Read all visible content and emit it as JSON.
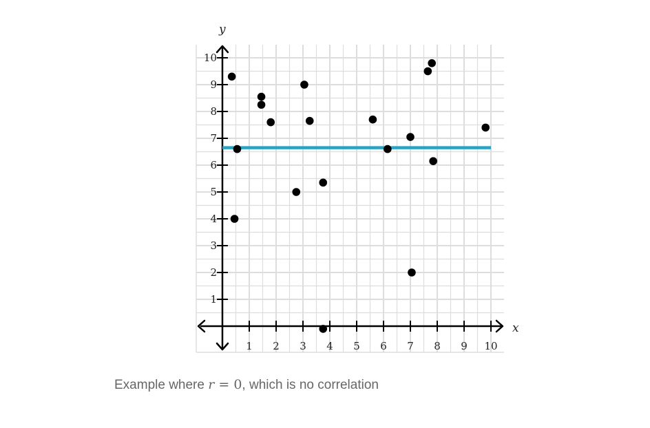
{
  "chart_data": {
    "type": "scatter",
    "title": "",
    "xlabel": "x",
    "ylabel": "y",
    "xlim": [
      0,
      10
    ],
    "ylim": [
      0,
      10
    ],
    "x_ticks": [
      1,
      2,
      3,
      4,
      5,
      6,
      7,
      8,
      9,
      10
    ],
    "y_ticks": [
      1,
      2,
      3,
      4,
      5,
      6,
      7,
      8,
      9,
      10
    ],
    "grid": true,
    "points": [
      {
        "x": 0.35,
        "y": 9.3
      },
      {
        "x": 0.55,
        "y": 6.6
      },
      {
        "x": 0.45,
        "y": 4.0
      },
      {
        "x": 1.45,
        "y": 8.55
      },
      {
        "x": 1.45,
        "y": 8.25
      },
      {
        "x": 1.8,
        "y": 7.6
      },
      {
        "x": 2.75,
        "y": 5.0
      },
      {
        "x": 3.05,
        "y": 9.0
      },
      {
        "x": 3.25,
        "y": 7.65
      },
      {
        "x": 3.75,
        "y": 5.35
      },
      {
        "x": 3.75,
        "y": -0.1
      },
      {
        "x": 5.6,
        "y": 7.7
      },
      {
        "x": 6.15,
        "y": 6.6
      },
      {
        "x": 7.0,
        "y": 7.05
      },
      {
        "x": 7.05,
        "y": 2.0
      },
      {
        "x": 7.65,
        "y": 9.5
      },
      {
        "x": 7.8,
        "y": 9.8
      },
      {
        "x": 7.85,
        "y": 6.15
      },
      {
        "x": 9.8,
        "y": 7.4
      }
    ],
    "line": {
      "x": [
        0,
        10
      ],
      "y": [
        6.65,
        6.65
      ],
      "color": "#29a2c6"
    },
    "point_color": "#000000",
    "grid_color": "#dddddd"
  },
  "caption": {
    "prefix": "Example where ",
    "var": "r",
    "equals": " = 0",
    "suffix": ", which is no correlation"
  }
}
